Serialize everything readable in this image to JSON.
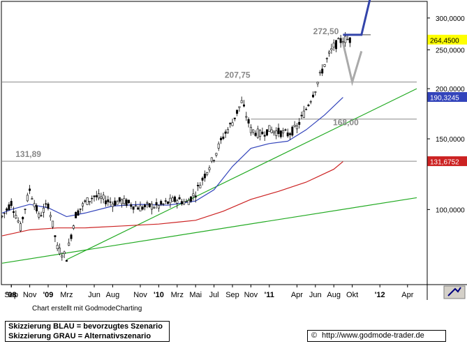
{
  "chart_data": {
    "type": "candlestick",
    "title": "",
    "x_labels": [
      {
        "month": "2008-09",
        "label": "'08"
      },
      {
        "month": "2008-09",
        "label": "Sep"
      },
      {
        "month": "2008-11",
        "label": "Nov"
      },
      {
        "month": "2009-01",
        "label": "'09"
      },
      {
        "month": "2009-03",
        "label": "Mrz"
      },
      {
        "month": "2009-06",
        "label": "Jun"
      },
      {
        "month": "2009-08",
        "label": "Aug"
      },
      {
        "month": "2009-11",
        "label": "Nov"
      },
      {
        "month": "2010-01",
        "label": "'10"
      },
      {
        "month": "2010-03",
        "label": "Mrz"
      },
      {
        "month": "2010-05",
        "label": "Mai"
      },
      {
        "month": "2010-07",
        "label": "Jul"
      },
      {
        "month": "2010-09",
        "label": "Sep"
      },
      {
        "month": "2010-11",
        "label": "Nov"
      },
      {
        "month": "2011-01",
        "label": "'11"
      },
      {
        "month": "2011-04",
        "label": "Apr"
      },
      {
        "month": "2011-06",
        "label": "Jun"
      },
      {
        "month": "2011-08",
        "label": "Aug"
      },
      {
        "month": "2011-10",
        "label": "Okt"
      },
      {
        "month": "2012-01",
        "label": "'12"
      },
      {
        "month": "2012-04",
        "label": "Apr"
      }
    ],
    "y_axis": {
      "scale": "log",
      "range": [
        65,
        330
      ],
      "ticks": [
        {
          "value": 100,
          "label": "100,0000"
        },
        {
          "value": 150,
          "label": "150,0000"
        },
        {
          "value": 200,
          "label": "200,0000"
        },
        {
          "value": 250,
          "label": "250,0000"
        },
        {
          "value": 300,
          "label": "300,0000"
        }
      ]
    },
    "price_series": [
      {
        "month": "2008-08",
        "value": 96
      },
      {
        "month": "2008-09",
        "value": 104
      },
      {
        "month": "2008-10",
        "value": 90
      },
      {
        "month": "2008-11",
        "value": 112
      },
      {
        "month": "2008-12",
        "value": 96
      },
      {
        "month": "2009-01",
        "value": 103
      },
      {
        "month": "2009-02",
        "value": 80
      },
      {
        "month": "2009-03",
        "value": 76
      },
      {
        "month": "2009-04",
        "value": 97
      },
      {
        "month": "2009-05",
        "value": 104
      },
      {
        "month": "2009-06",
        "value": 108
      },
      {
        "month": "2009-07",
        "value": 106
      },
      {
        "month": "2009-08",
        "value": 104
      },
      {
        "month": "2009-09",
        "value": 105
      },
      {
        "month": "2009-10",
        "value": 103
      },
      {
        "month": "2009-11",
        "value": 101
      },
      {
        "month": "2009-12",
        "value": 102
      },
      {
        "month": "2010-01",
        "value": 102
      },
      {
        "month": "2010-02",
        "value": 104
      },
      {
        "month": "2010-03",
        "value": 106
      },
      {
        "month": "2010-04",
        "value": 104
      },
      {
        "month": "2010-05",
        "value": 110
      },
      {
        "month": "2010-06",
        "value": 122
      },
      {
        "month": "2010-07",
        "value": 135
      },
      {
        "month": "2010-08",
        "value": 152
      },
      {
        "month": "2010-09",
        "value": 165
      },
      {
        "month": "2010-10",
        "value": 185
      },
      {
        "month": "2010-11",
        "value": 158
      },
      {
        "month": "2010-12",
        "value": 154
      },
      {
        "month": "2011-01",
        "value": 158
      },
      {
        "month": "2011-02",
        "value": 156
      },
      {
        "month": "2011-03",
        "value": 154
      },
      {
        "month": "2011-04",
        "value": 160
      },
      {
        "month": "2011-05",
        "value": 178
      },
      {
        "month": "2011-06",
        "value": 200
      },
      {
        "month": "2011-07",
        "value": 230
      },
      {
        "month": "2011-08",
        "value": 255
      },
      {
        "month": "2011-09",
        "value": 266
      },
      {
        "month": "2011-10",
        "value": 264.45
      }
    ],
    "moving_averages": [
      {
        "color": "#3344bb",
        "points": [
          {
            "month": "2008-08",
            "value": 98
          },
          {
            "month": "2008-09",
            "value": 100
          },
          {
            "month": "2008-11",
            "value": 103
          },
          {
            "month": "2009-01",
            "value": 101
          },
          {
            "month": "2009-03",
            "value": 96
          },
          {
            "month": "2009-05",
            "value": 98
          },
          {
            "month": "2009-08",
            "value": 102
          },
          {
            "month": "2009-11",
            "value": 103
          },
          {
            "month": "2010-02",
            "value": 102.5
          },
          {
            "month": "2010-05",
            "value": 105
          },
          {
            "month": "2010-07",
            "value": 112
          },
          {
            "month": "2010-09",
            "value": 128
          },
          {
            "month": "2010-11",
            "value": 142
          },
          {
            "month": "2011-01",
            "value": 146
          },
          {
            "month": "2011-03",
            "value": 148
          },
          {
            "month": "2011-05",
            "value": 158
          },
          {
            "month": "2011-07",
            "value": 172
          },
          {
            "month": "2011-09",
            "value": 190.32
          }
        ]
      },
      {
        "color": "#cc2222",
        "points": [
          {
            "month": "2008-08",
            "value": 86
          },
          {
            "month": "2008-11",
            "value": 89
          },
          {
            "month": "2009-02",
            "value": 90
          },
          {
            "month": "2009-05",
            "value": 90
          },
          {
            "month": "2009-09",
            "value": 91
          },
          {
            "month": "2010-01",
            "value": 92
          },
          {
            "month": "2010-05",
            "value": 94
          },
          {
            "month": "2010-08",
            "value": 99
          },
          {
            "month": "2010-11",
            "value": 106
          },
          {
            "month": "2011-02",
            "value": 111
          },
          {
            "month": "2011-05",
            "value": 117
          },
          {
            "month": "2011-08",
            "value": 126
          },
          {
            "month": "2011-09",
            "value": 131.68
          }
        ]
      }
    ],
    "horizontal_levels": [
      {
        "value": 131.89,
        "label": "131,89",
        "from": "2008-08",
        "to": "2012-05",
        "color": "#888888"
      },
      {
        "value": 207.75,
        "label": "207,75",
        "from": "2008-08",
        "to": "2012-05",
        "color": "#888888"
      },
      {
        "value": 168.0,
        "label": "168,00",
        "from": "2010-11",
        "to": "2012-05",
        "color": "#888888"
      },
      {
        "value": 272.5,
        "label": "272,50",
        "from": "2011-09",
        "to": "2011-12",
        "color": "#444444"
      }
    ],
    "trend_lines": [
      {
        "color": "#22aa22",
        "from": {
          "month": "2009-03",
          "value": 75
        },
        "to": {
          "month": "2012-05",
          "value": 200
        }
      },
      {
        "color": "#22aa22",
        "from": {
          "month": "2008-08",
          "value": 73.5
        },
        "to": {
          "month": "2012-05",
          "value": 107
        }
      }
    ],
    "scenarios": [
      {
        "name": "Skizzierung BLAU = bevorzugtes Szenario",
        "color": "#3344aa",
        "points": [
          {
            "month": "2011-09",
            "value": 272.5
          },
          {
            "month": "2011-10",
            "value": 272.5
          },
          {
            "month": "2011-11",
            "value": 272.5
          },
          {
            "month": "2011-12",
            "value": 340
          }
        ]
      },
      {
        "name": "Skizzierung GRAU = Alternativszenario",
        "color": "#aaaaaa",
        "points": [
          {
            "month": "2011-09",
            "value": 260
          },
          {
            "month": "2011-10",
            "value": 207.75
          },
          {
            "month": "2011-11",
            "value": 248
          }
        ]
      }
    ],
    "value_tags": [
      {
        "value": 264.45,
        "label": "264,4500",
        "bg": "#ffff00",
        "fg": "#000000"
      },
      {
        "value": 190.32,
        "label": "190,3245",
        "bg": "#3344bb",
        "fg": "#ffffff"
      },
      {
        "value": 131.68,
        "label": "131,6752",
        "bg": "#cc2222",
        "fg": "#ffffff"
      }
    ]
  },
  "footer": {
    "credit": "Chart erstellt mit GodmodeCharting",
    "legend_blue": "Skizzierung BLAU = bevorzugtes Szenario",
    "legend_gray": "Skizzierung GRAU = Alternativszenario",
    "url_symbol": "©",
    "url": "http://www.godmode-trader.de"
  },
  "colors": {
    "background": "#ffffff",
    "grid": "#b0b0b0",
    "candles": "#000000"
  }
}
